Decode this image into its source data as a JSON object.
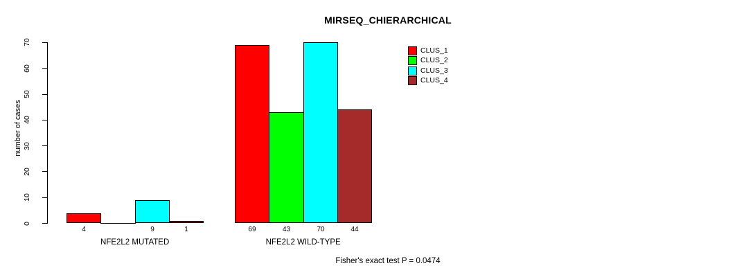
{
  "chart_data": {
    "type": "bar",
    "title": "MIRSEQ_CHIERARCHICAL",
    "ylabel": "number of cases",
    "xlabel": "",
    "ylim": [
      0,
      70
    ],
    "yticks": [
      0,
      10,
      20,
      30,
      40,
      50,
      60,
      70
    ],
    "grid": false,
    "legend_position": "top-right",
    "categories": [
      "NFE2L2 MUTATED",
      "NFE2L2 WILD-TYPE"
    ],
    "series": [
      {
        "name": "CLUS_1",
        "color": "#ff0000",
        "values": [
          4,
          69
        ]
      },
      {
        "name": "CLUS_2",
        "color": "#00ff00",
        "values": [
          0,
          43
        ]
      },
      {
        "name": "CLUS_3",
        "color": "#00ffff",
        "values": [
          9,
          70
        ]
      },
      {
        "name": "CLUS_4",
        "color": "#a52a2a",
        "values": [
          1,
          44
        ]
      }
    ],
    "bar_value_labels_shown": [
      "4",
      "9",
      "1",
      "69",
      "43",
      "70",
      "44"
    ],
    "hide_zero_value_labels": true,
    "annotation": "Fisher's exact test P = 0.0474",
    "colors": {
      "axis": "#000000",
      "bar_border": "#000000",
      "background": "#ffffff"
    }
  }
}
